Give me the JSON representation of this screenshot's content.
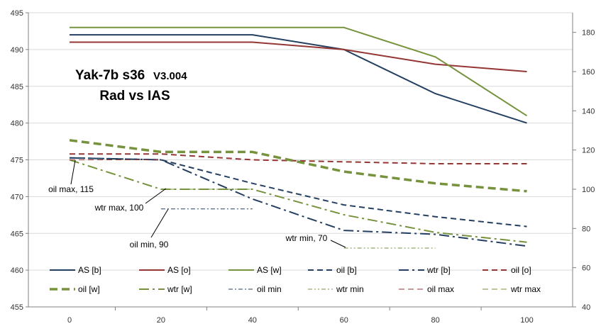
{
  "chart_data": {
    "type": "line",
    "title": "Yak-7b s36",
    "title_version": "V3.004",
    "subtitle": "Rad vs IAS",
    "xlabel": "",
    "ylabel": "",
    "y2label": "",
    "x_ticks": [
      "0",
      "20",
      "40",
      "60",
      "80",
      "100"
    ],
    "xlim": [
      -9,
      110
    ],
    "ylim": [
      455,
      495
    ],
    "y2lim": [
      40,
      190
    ],
    "y_ticks": [
      "455",
      "460",
      "465",
      "470",
      "475",
      "480",
      "485",
      "490",
      "495"
    ],
    "y2_ticks": [
      "40",
      "60",
      "80",
      "100",
      "120",
      "140",
      "160",
      "180"
    ],
    "grid": "horizontal",
    "legend_position": "bottom inside",
    "colors": {
      "blue": "#243f60",
      "red": "#943634",
      "green": "#76923c",
      "grid": "#d9d9d9",
      "axis": "#808080",
      "leader": "#000000"
    },
    "series": [
      {
        "name": "AS [b]",
        "axis": "left",
        "color": "blue",
        "dash": "solid",
        "width": 2,
        "x": [
          0,
          20,
          40,
          60,
          80,
          100
        ],
        "y": [
          492,
          492,
          492,
          490,
          484,
          480
        ]
      },
      {
        "name": "AS [o]",
        "axis": "left",
        "color": "red",
        "dash": "solid",
        "width": 2,
        "x": [
          0,
          20,
          40,
          60,
          80,
          100
        ],
        "y": [
          491,
          491,
          491,
          490,
          488,
          487
        ]
      },
      {
        "name": "AS [w]",
        "axis": "left",
        "color": "green",
        "dash": "solid",
        "width": 2,
        "x": [
          0,
          20,
          40,
          60,
          80,
          100
        ],
        "y": [
          493,
          493,
          493,
          493,
          489,
          481
        ]
      },
      {
        "name": "oil [b]",
        "axis": "right",
        "color": "blue",
        "dash": "dash",
        "width": 2,
        "x": [
          0,
          20,
          40,
          60,
          80,
          100
        ],
        "y": [
          116,
          115,
          103,
          92,
          86,
          81
        ]
      },
      {
        "name": "wtr [b]",
        "axis": "right",
        "color": "blue",
        "dash": "longdashdot",
        "width": 2,
        "x": [
          0,
          20,
          40,
          60,
          80,
          100
        ],
        "y": [
          116,
          115,
          95,
          79,
          77,
          71
        ]
      },
      {
        "name": "oil [o]",
        "axis": "right",
        "color": "red",
        "dash": "dash",
        "width": 2,
        "x": [
          0,
          20,
          40,
          60,
          80,
          100
        ],
        "y": [
          118,
          118,
          115,
          114,
          113,
          113
        ]
      },
      {
        "name": "oil [w]",
        "axis": "right",
        "color": "green",
        "dash": "thickdash",
        "width": 3.5,
        "x": [
          0,
          20,
          40,
          60,
          80,
          100
        ],
        "y": [
          125,
          119,
          119,
          109,
          103,
          99
        ]
      },
      {
        "name": "wtr [w]",
        "axis": "right",
        "color": "green",
        "dash": "longdashdot",
        "width": 2,
        "x": [
          0,
          20,
          40,
          60,
          80,
          100
        ],
        "y": [
          115,
          100,
          100,
          87,
          78,
          73
        ]
      },
      {
        "name": "oil min",
        "axis": "right",
        "color": "blue",
        "dash": "dashdot",
        "width": 1,
        "x": [
          20,
          40
        ],
        "y": [
          90,
          90
        ]
      },
      {
        "name": "wtr min",
        "axis": "right",
        "color": "green",
        "dash": "dashdotdot",
        "width": 1,
        "x": [
          60,
          80
        ],
        "y": [
          70,
          70
        ]
      },
      {
        "name": "oil max",
        "axis": "right",
        "color": "red",
        "dash": "dash",
        "width": 1,
        "x": [
          0,
          20
        ],
        "y": [
          115,
          115
        ]
      },
      {
        "name": "wtr max",
        "axis": "right",
        "color": "green",
        "dash": "dash",
        "width": 1,
        "x": [
          20,
          40
        ],
        "y": [
          100,
          100
        ]
      }
    ],
    "annotations": [
      {
        "text": "oil max, 115",
        "anchor_x": 0,
        "anchor_y2": 115
      },
      {
        "text": "wtr max, 100",
        "anchor_x": 20,
        "anchor_y2": 100
      },
      {
        "text": "oil min, 90",
        "anchor_x": 20,
        "anchor_y2": 90
      },
      {
        "text": "wtr min, 70",
        "anchor_x": 60,
        "anchor_y2": 70
      }
    ]
  }
}
